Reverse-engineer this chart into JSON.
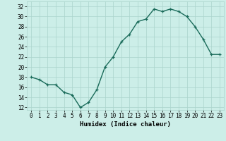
{
  "x": [
    0,
    1,
    2,
    3,
    4,
    5,
    6,
    7,
    8,
    9,
    10,
    11,
    12,
    13,
    14,
    15,
    16,
    17,
    18,
    19,
    20,
    21,
    22,
    23
  ],
  "y": [
    18,
    17.5,
    16.5,
    16.5,
    15,
    14.5,
    12,
    13,
    15.5,
    20,
    22,
    25,
    26.5,
    29,
    29.5,
    31.5,
    31,
    31.5,
    31,
    30,
    28,
    25.5,
    22.5,
    22.5
  ],
  "line_color": "#1a6b5a",
  "marker_color": "#1a6b5a",
  "bg_color": "#cceee8",
  "grid_color": "#aad4cc",
  "xlabel": "Humidex (Indice chaleur)",
  "xlim": [
    -0.5,
    23.5
  ],
  "ylim": [
    11.5,
    33
  ],
  "yticks": [
    12,
    14,
    16,
    18,
    20,
    22,
    24,
    26,
    28,
    30,
    32
  ],
  "xticks": [
    0,
    1,
    2,
    3,
    4,
    5,
    6,
    7,
    8,
    9,
    10,
    11,
    12,
    13,
    14,
    15,
    16,
    17,
    18,
    19,
    20,
    21,
    22,
    23
  ],
  "tick_fontsize": 5.5,
  "label_fontsize": 6.5,
  "linewidth": 1.0,
  "markersize": 3.5
}
